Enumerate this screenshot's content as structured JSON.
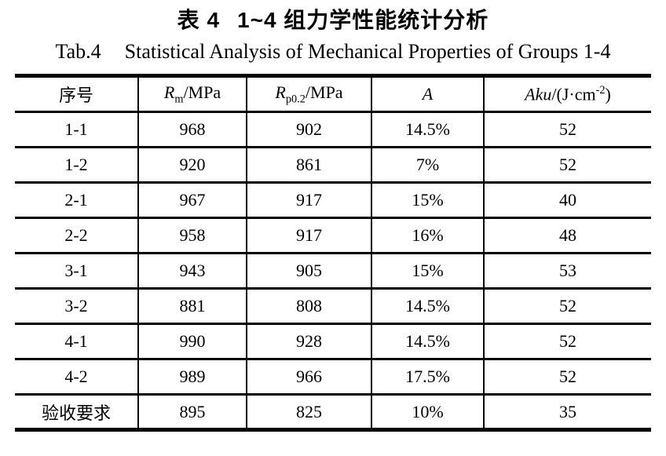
{
  "page": {
    "title_zh": {
      "prefix": "表 4",
      "text": "1~4 组力学性能统计分析"
    },
    "title_en": {
      "prefix": "Tab.4",
      "text": "Statistical Analysis of Mechanical Properties of Groups 1-4"
    }
  },
  "table": {
    "columns": [
      {
        "label": "序号"
      },
      {
        "italic": "R",
        "sub": "m",
        "rest": "/MPa"
      },
      {
        "italic": "R",
        "sub": "p0.2",
        "rest": "/MPa"
      },
      {
        "italic": "A"
      },
      {
        "italic": "Aku",
        "rest": "/(J·cm",
        "sup": "-2",
        "rest2": ")"
      }
    ],
    "rows": [
      [
        "1-1",
        "968",
        "902",
        "14.5%",
        "52"
      ],
      [
        "1-2",
        "920",
        "861",
        "7%",
        "52"
      ],
      [
        "2-1",
        "967",
        "917",
        "15%",
        "40"
      ],
      [
        "2-2",
        "958",
        "917",
        "16%",
        "48"
      ],
      [
        "3-1",
        "943",
        "905",
        "15%",
        "53"
      ],
      [
        "3-2",
        "881",
        "808",
        "14.5%",
        "52"
      ],
      [
        "4-1",
        "990",
        "928",
        "14.5%",
        "52"
      ],
      [
        "4-2",
        "989",
        "966",
        "17.5%",
        "52"
      ],
      [
        "验收要求",
        "895",
        "825",
        "10%",
        "35"
      ]
    ]
  },
  "colors": {
    "text": "#000000",
    "background": "#ffffff",
    "border": "#000000"
  }
}
